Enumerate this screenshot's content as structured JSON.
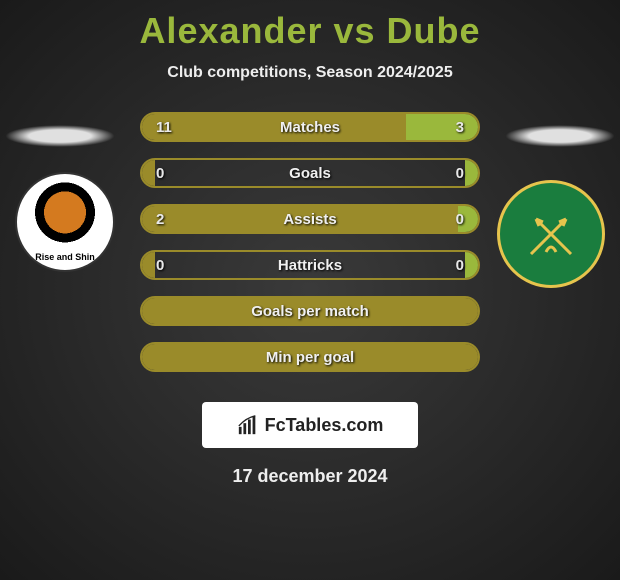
{
  "title": "Alexander vs Dube",
  "subtitle": "Club competitions, Season 2024/2025",
  "date_text": "17 december 2024",
  "fctables_label": "FcTables.com",
  "colors": {
    "left_bar": "#9a8b2a",
    "right_bar": "#9ab83c",
    "border": "#9a8b2a",
    "title": "#9ab83c"
  },
  "rows": [
    {
      "label": "Matches",
      "left_val": "11",
      "right_val": "3",
      "left_pct": 78.5,
      "right_pct": 21.5,
      "show_vals": true
    },
    {
      "label": "Goals",
      "left_val": "0",
      "right_val": "0",
      "left_pct": 4,
      "right_pct": 4,
      "show_vals": true
    },
    {
      "label": "Assists",
      "left_val": "2",
      "right_val": "0",
      "left_pct": 94,
      "right_pct": 6,
      "show_vals": true
    },
    {
      "label": "Hattricks",
      "left_val": "0",
      "right_val": "0",
      "left_pct": 4,
      "right_pct": 4,
      "show_vals": true
    },
    {
      "label": "Goals per match",
      "left_val": "",
      "right_val": "",
      "left_pct": 100,
      "right_pct": 0,
      "show_vals": false
    },
    {
      "label": "Min per goal",
      "left_val": "",
      "right_val": "",
      "left_pct": 100,
      "right_pct": 0,
      "show_vals": false
    }
  ]
}
